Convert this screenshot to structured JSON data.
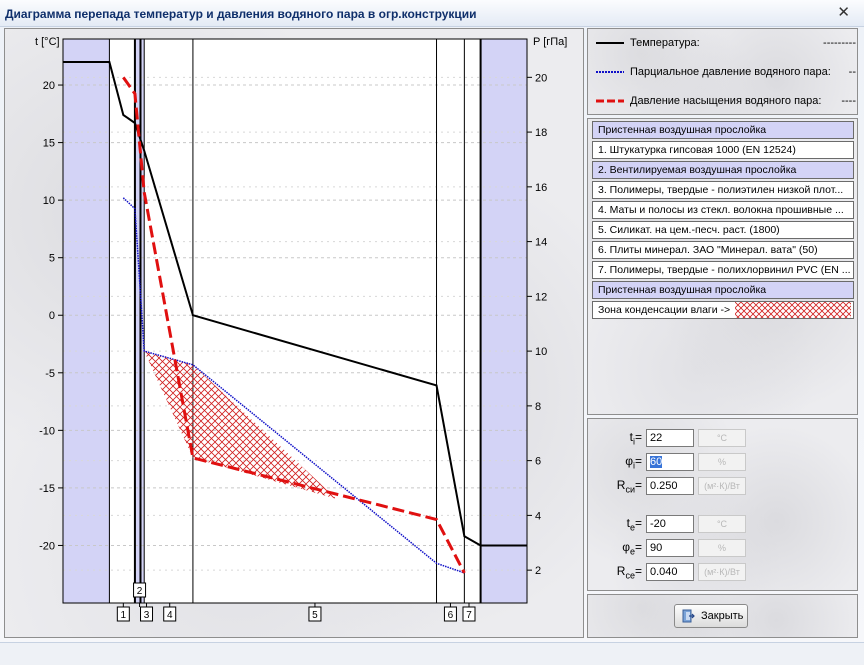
{
  "window": {
    "title": "Диаграмма перепада температур и давления водяного пара в огр.конструкции",
    "close_glyph": "✕",
    "close_icon": "close-icon"
  },
  "chart_data": {
    "type": "line",
    "ylabel_left": "t [°C]",
    "ylabel_right": "P [гПа]",
    "ylim_left": [
      -25,
      24
    ],
    "ylim_right": [
      0.8,
      21.4
    ],
    "yticks_left": [
      20,
      15,
      10,
      5,
      0,
      -5,
      -10,
      -15,
      -20
    ],
    "yticks_right": [
      20,
      18,
      16,
      14,
      12,
      10,
      8,
      6,
      4,
      2
    ],
    "x_positions_comment": "",
    "layer_bounds": [
      0,
      0.1,
      0.155,
      0.175,
      0.28,
      0.805,
      0.865,
      0.9,
      1.0
    ],
    "layer_numbers": [
      "1",
      "2",
      "3",
      "4",
      "5",
      "6",
      "7"
    ],
    "layer_label_positions": [
      0.13,
      0.165,
      0.18,
      0.23,
      0.543,
      0.835,
      0.875
    ],
    "series": [
      {
        "name": "Температура",
        "color": "#000000",
        "style": "solid",
        "axis": "left",
        "x": [
          0,
          0.1,
          0.13,
          0.155,
          0.175,
          0.28,
          0.805,
          0.865,
          0.9,
          1.0
        ],
        "y": [
          22,
          22,
          17.4,
          16.7,
          14.3,
          0,
          -6.1,
          -19.2,
          -20,
          -20
        ]
      },
      {
        "name": "Парциальное давление водяного пара",
        "color": "#1010c8",
        "style": "dotted",
        "axis": "right",
        "x": [
          0.13,
          0.155,
          0.175,
          0.28,
          0.805,
          0.865
        ],
        "y": [
          15.6,
          15.2,
          10,
          9.5,
          2.25,
          1.9
        ]
      },
      {
        "name": "Давление насыщения водяного пара",
        "color": "#e01010",
        "style": "dashed",
        "axis": "right",
        "x": [
          0.13,
          0.155,
          0.175,
          0.28,
          0.805,
          0.865
        ],
        "y": [
          20,
          19.4,
          15.8,
          6.1,
          3.85,
          1.9
        ]
      }
    ],
    "condensation_zone": {
      "color": "#d02020",
      "x": [
        0.175,
        0.28,
        0.59
      ],
      "y_top": [
        10,
        9.5,
        4.6
      ],
      "y_bot": [
        10,
        6.1,
        4.6
      ]
    }
  },
  "legend": [
    {
      "label": "Температура:",
      "dash": "---------",
      "color": "#000000",
      "style": "solid"
    },
    {
      "label": "Парциальное давление водяного пара:",
      "dash": "--",
      "color": "#1010c8",
      "style": "dotted"
    },
    {
      "label": "Давление насыщения водяного пара:",
      "dash": "----",
      "color": "#e01010",
      "style": "dashed"
    }
  ],
  "layers": [
    {
      "label": "Пристенная воздушная прослойка",
      "air": true
    },
    {
      "label": "1. Штукатурка гипсовая 1000 (EN 12524)",
      "air": false
    },
    {
      "label": "2. Вентилируемая воздушная прослойка",
      "air": true
    },
    {
      "label": "3. Полимеры, твердые - полиэтилен низкой плот...",
      "air": false
    },
    {
      "label": "4. Маты и полосы из стекл. волокна прошивные ...",
      "air": false
    },
    {
      "label": "5. Силикат. на цем.-песч. раст. (1800)",
      "air": false
    },
    {
      "label": "6. Плиты минерал. ЗАО \"Минерал. вата\" (50)",
      "air": false
    },
    {
      "label": "7. Полимеры, твердые - полихлорвинил PVC (EN ...",
      "air": false
    },
    {
      "label": "Пристенная воздушная прослойка",
      "air": true
    }
  ],
  "condensation_label": "Зона конденсации влаги ->",
  "params": {
    "ti": {
      "sym": "t",
      "sub": "i",
      "value": "22",
      "unit": "°C"
    },
    "phii": {
      "sym": "φ",
      "sub": "i",
      "value": "60",
      "unit": "%"
    },
    "rsi": {
      "sym": "R",
      "sub": "си",
      "value": "0.250",
      "unit": "(м²·К)/Вт"
    },
    "te": {
      "sym": "t",
      "sub": "e",
      "value": "-20",
      "unit": "°C"
    },
    "phie": {
      "sym": "φ",
      "sub": "e",
      "value": "90",
      "unit": "%"
    },
    "rse": {
      "sym": "R",
      "sub": "се",
      "value": "0.040",
      "unit": "(м²·К)/Вт"
    }
  },
  "close_button": {
    "label": "Закрыть"
  }
}
